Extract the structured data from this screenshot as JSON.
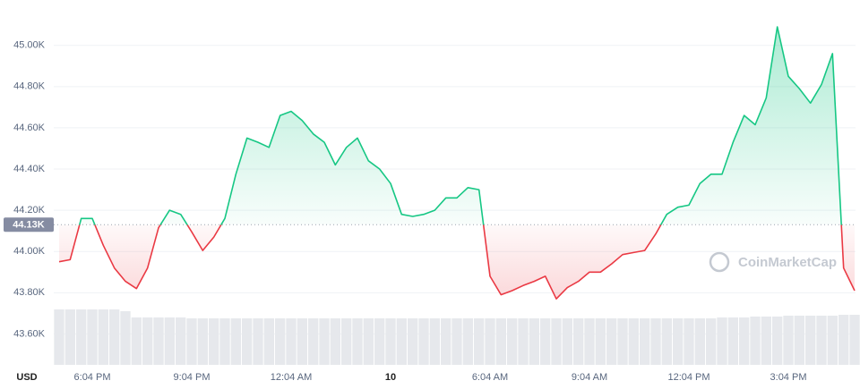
{
  "chart_data": {
    "type": "line",
    "y_unit": "USD",
    "watermark": "CoinMarketCap",
    "categories": [
      null,
      null,
      null,
      "6:04 PM",
      null,
      null,
      null,
      null,
      null,
      null,
      null,
      null,
      "9:04 PM",
      null,
      null,
      null,
      null,
      null,
      null,
      null,
      null,
      "12:04 AM",
      null,
      null,
      null,
      null,
      null,
      null,
      null,
      null,
      "10",
      null,
      null,
      null,
      null,
      null,
      null,
      null,
      null,
      "6:04 AM",
      null,
      null,
      null,
      null,
      null,
      null,
      null,
      null,
      "9:04 AM",
      null,
      null,
      null,
      null,
      null,
      null,
      null,
      null,
      "12:04 PM",
      null,
      null,
      null,
      null,
      null,
      null,
      null,
      null,
      "3:04 PM",
      null,
      null,
      null,
      null,
      null,
      null
    ],
    "series": [
      {
        "name": "Price",
        "color": "#16c784",
        "color_below": "#ea3943",
        "values": [
          43950,
          43960,
          44160,
          44160,
          44030,
          43920,
          43855,
          43820,
          43920,
          44115,
          44200,
          44180,
          44095,
          44005,
          44070,
          44160,
          44375,
          44550,
          44530,
          44505,
          44660,
          44680,
          44635,
          44570,
          44530,
          44420,
          44505,
          44550,
          44440,
          44400,
          44330,
          44180,
          44170,
          44180,
          44200,
          44260,
          44260,
          44310,
          44300,
          43880,
          43790,
          43810,
          43835,
          43855,
          43880,
          43770,
          43825,
          43855,
          43900,
          43900,
          43940,
          43985,
          43995,
          44005,
          44085,
          44180,
          44215,
          44225,
          44330,
          44375,
          44375,
          44530,
          44660,
          44615,
          44745,
          45090,
          44850,
          44790,
          44720,
          44810,
          44960,
          43920,
          43810
        ]
      }
    ],
    "volume": [
      62,
      62,
      62,
      62,
      62,
      62,
      60,
      53,
      53,
      53,
      53,
      53,
      52,
      52,
      52,
      52,
      52,
      52,
      52,
      52,
      52,
      52,
      52,
      52,
      52,
      52,
      52,
      52,
      52,
      52,
      52,
      52,
      52,
      52,
      52,
      52,
      52,
      52,
      52,
      52,
      52,
      52,
      52,
      52,
      52,
      52,
      52,
      52,
      52,
      52,
      52,
      52,
      52,
      52,
      52,
      52,
      52,
      52,
      52,
      52,
      53,
      53,
      53,
      54,
      54,
      54,
      55,
      55,
      55,
      55,
      55,
      56,
      56
    ],
    "baseline": {
      "value": 44130,
      "label": "44.13K"
    },
    "ylim": [
      43450,
      45220
    ],
    "yticks": [
      {
        "value": 43600,
        "label": "43.60K"
      },
      {
        "value": 43800,
        "label": "43.80K"
      },
      {
        "value": 44000,
        "label": "44.00K"
      },
      {
        "value": 44200,
        "label": "44.20K"
      },
      {
        "value": 44400,
        "label": "44.40K"
      },
      {
        "value": 44600,
        "label": "44.60K"
      },
      {
        "value": 44800,
        "label": "44.80K"
      },
      {
        "value": 45000,
        "label": "45.00K"
      }
    ],
    "grid": true
  }
}
